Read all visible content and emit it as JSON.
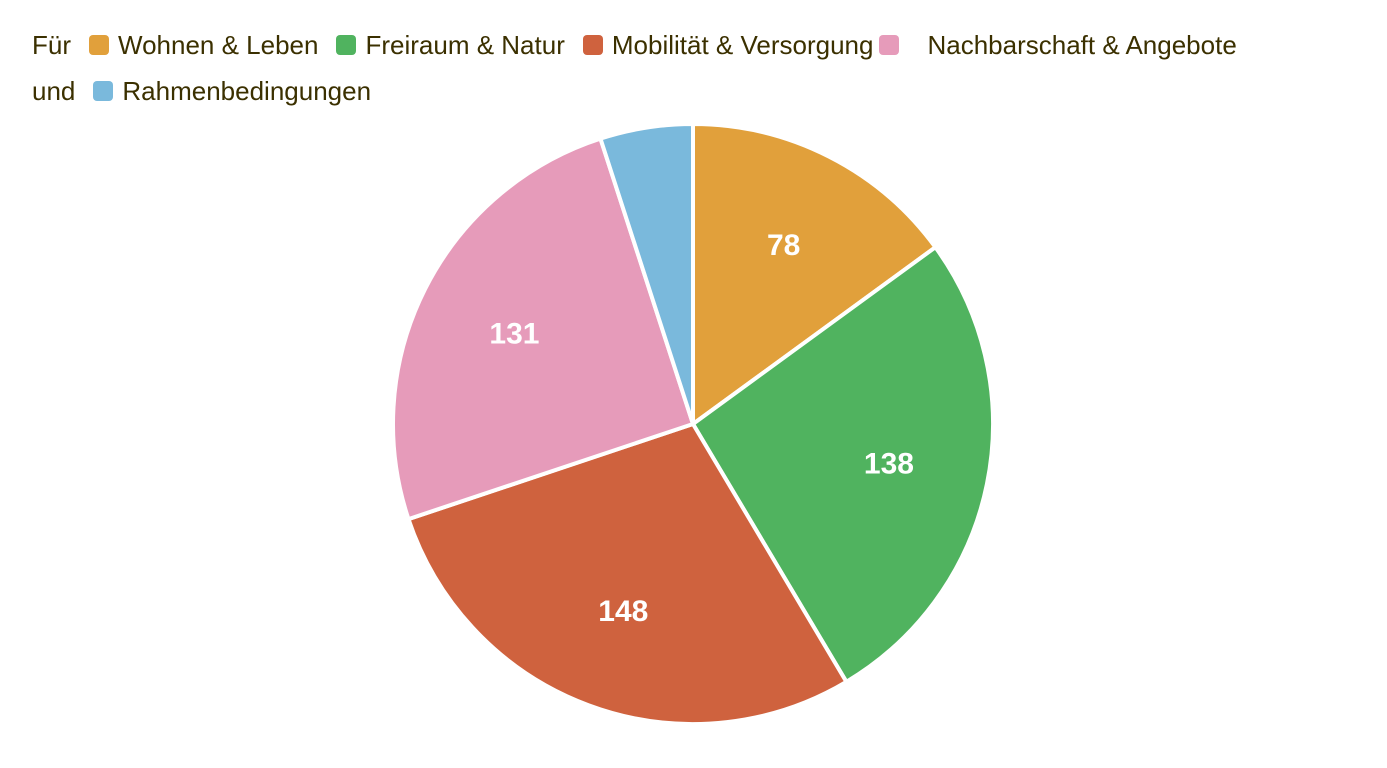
{
  "legend": {
    "prefix": "Für",
    "connector": "und",
    "items": [
      {
        "label": "Wohnen & Leben",
        "color": "#e1a03b"
      },
      {
        "label": "Freiraum & Natur",
        "color": "#50b35f"
      },
      {
        "label": "Mobilität & Versorgung",
        "color": "#cf623e"
      },
      {
        "label": "Nachbarschaft & Angebote",
        "color": "#e69bba"
      },
      {
        "label": "Rahmenbedingungen",
        "color": "#7ab9dc"
      }
    ]
  },
  "chart_data": {
    "type": "pie",
    "title": "",
    "legend_position": "top",
    "start_angle": "12 o'clock, clockwise",
    "slices": [
      {
        "label": "Wohnen & Leben",
        "value": 78,
        "data_label": "78",
        "color": "#e1a03b"
      },
      {
        "label": "Freiraum & Natur",
        "value": 138,
        "data_label": "138",
        "color": "#50b35f"
      },
      {
        "label": "Mobilität & Versorgung",
        "value": 148,
        "data_label": "148",
        "color": "#cf623e"
      },
      {
        "label": "Nachbarschaft & Angebote",
        "value": 131,
        "data_label": "131",
        "color": "#e69bba"
      },
      {
        "label": "Rahmenbedingungen",
        "value": 26,
        "data_label": "",
        "color": "#7ab9dc"
      }
    ]
  }
}
